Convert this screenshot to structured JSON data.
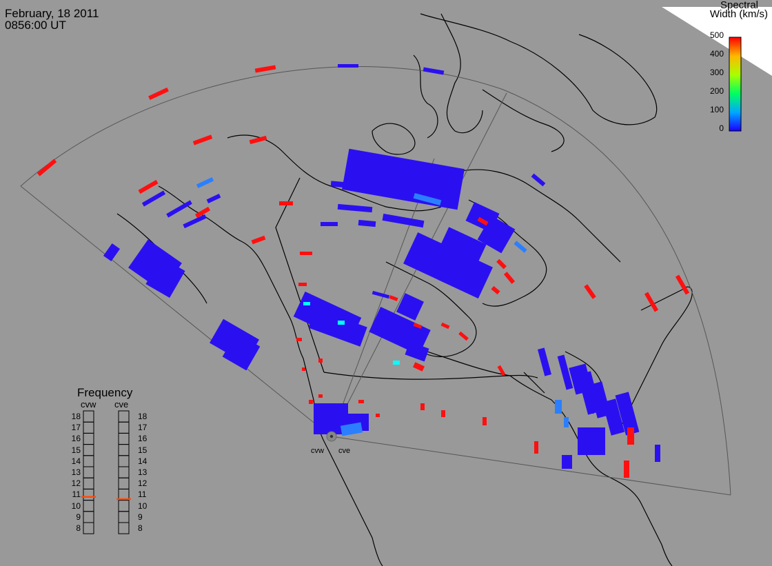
{
  "header": {
    "date": "February, 18 2011",
    "time": "0856:00 UT"
  },
  "colorbar": {
    "title_line1": "Spectral",
    "title_line2": "Width (km/s)",
    "ticks": [
      "500",
      "400",
      "300",
      "200",
      "100",
      "0"
    ],
    "colors": [
      "#1a00ff",
      "#00a8ff",
      "#00ff60",
      "#aaff00",
      "#ffb800",
      "#ff0000"
    ]
  },
  "frequency": {
    "title": "Frequency",
    "radars": [
      "cvw",
      "cve"
    ],
    "levels": [
      "18",
      "17",
      "16",
      "15",
      "14",
      "13",
      "12",
      "11",
      "10",
      "9",
      "8"
    ],
    "current": {
      "cvw": 10.8,
      "cve": 10.6
    }
  },
  "stations": [
    "cvw",
    "cve"
  ],
  "colors": {
    "background": "#999999",
    "low": "#2a10f0",
    "mid": "#2b7fff",
    "cyan": "#00ffff",
    "high": "#ff1010",
    "freq_marker": "#ff4a0a"
  }
}
